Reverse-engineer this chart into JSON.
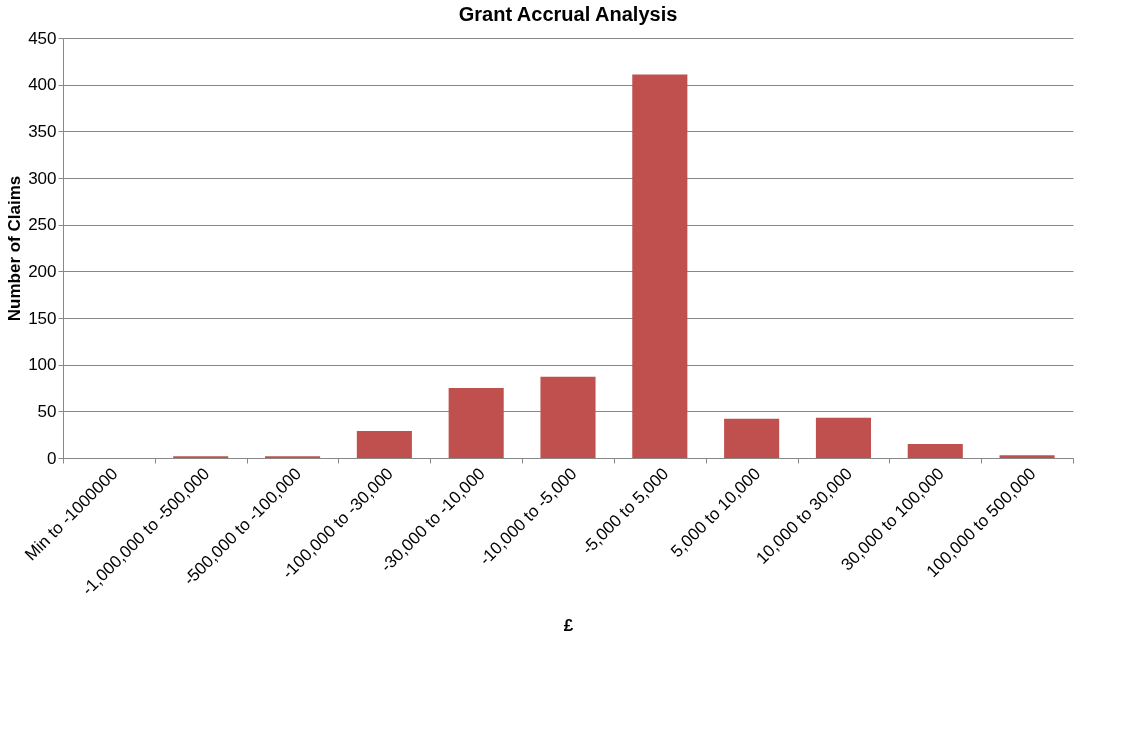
{
  "chart_data": {
    "type": "bar",
    "title": "Grant Accrual Analysis",
    "xlabel": "£",
    "ylabel": "Number of Claims",
    "categories": [
      "Min to -1000000",
      "-1,000,000 to -500,000",
      "-500,000 to -100,000",
      "-100,000 to -30,000",
      "-30,000 to -10,000",
      "-10,000 to -5,000",
      "-5,000 to 5,000",
      "5,000 to 10,000",
      "10,000 to 30,000",
      "30,000 to 100,000",
      "100,000 to 500,000"
    ],
    "values": [
      0,
      2,
      2,
      29,
      75,
      87,
      411,
      42,
      43,
      15,
      3
    ],
    "color": "#c0504d",
    "ylim": [
      0,
      450
    ],
    "yticks": [
      0,
      50,
      100,
      150,
      200,
      250,
      300,
      350,
      400,
      450
    ],
    "grid": "y"
  }
}
